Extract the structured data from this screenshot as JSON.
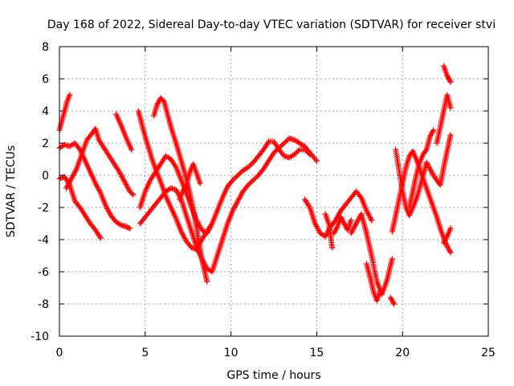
{
  "chart_data": {
    "type": "scatter",
    "title": "Day 168 of 2022, Sidereal Day-to-day VTEC variation (SDTVAR) for receiver stvi",
    "xlabel": "GPS time / hours",
    "ylabel": "SDTVAR / TECUs",
    "xlim": [
      0,
      25
    ],
    "ylim": [
      -10,
      8
    ],
    "xticks": [
      0,
      5,
      10,
      15,
      20,
      25
    ],
    "yticks": [
      -10,
      -8,
      -6,
      -4,
      -2,
      0,
      2,
      4,
      6,
      8
    ],
    "grid": true,
    "marker": "plus",
    "color": "#ff0000",
    "series": [
      {
        "name": "s1",
        "x": [
          0.0,
          0.15,
          0.3,
          0.45,
          0.6
        ],
        "y": [
          2.8,
          3.4,
          4.0,
          4.6,
          5.0
        ]
      },
      {
        "name": "s2",
        "x": [
          0.0,
          0.3,
          0.6,
          0.9,
          1.2,
          1.5,
          1.8,
          2.1,
          2.4
        ],
        "y": [
          -0.2,
          -0.1,
          -0.6,
          -1.6,
          -2.0,
          -2.5,
          -3.0,
          -3.4,
          -3.9
        ]
      },
      {
        "name": "s3",
        "x": [
          0.0,
          0.3,
          0.6,
          0.9,
          1.2,
          1.5,
          1.8,
          2.1,
          2.4,
          2.7,
          3.0,
          3.3,
          3.6,
          3.9,
          4.1
        ],
        "y": [
          1.7,
          1.9,
          1.8,
          2.0,
          1.6,
          0.9,
          0.2,
          -0.5,
          -1.1,
          -1.9,
          -2.5,
          -2.9,
          -3.1,
          -3.2,
          -3.3
        ]
      },
      {
        "name": "s4",
        "x": [
          0.4,
          0.7,
          1.0,
          1.3,
          1.6,
          1.9,
          2.1,
          2.3,
          2.6,
          2.9,
          3.2,
          3.5,
          3.8,
          4.1,
          4.3
        ],
        "y": [
          -0.8,
          -0.2,
          0.4,
          1.3,
          2.2,
          2.6,
          2.9,
          2.2,
          1.7,
          1.2,
          0.7,
          0.2,
          -0.4,
          -1.0,
          -1.2
        ]
      },
      {
        "name": "s5",
        "x": [
          3.3,
          3.6,
          3.9,
          4.2
        ],
        "y": [
          3.8,
          3.1,
          2.3,
          1.6
        ]
      },
      {
        "name": "s6",
        "x": [
          4.6,
          4.8,
          5.0,
          5.2,
          5.4,
          5.6,
          5.9,
          6.2,
          6.5,
          6.8,
          7.1,
          7.4,
          7.7,
          8.0,
          8.3,
          8.6,
          8.9,
          9.2,
          9.5,
          9.8,
          10.1,
          10.4,
          10.7,
          11.0,
          11.3,
          11.6,
          11.9,
          12.2,
          12.5,
          12.8,
          13.1,
          13.4,
          13.7,
          14.0,
          14.3,
          14.6
        ],
        "y": [
          4.0,
          3.2,
          2.4,
          1.7,
          1.0,
          0.4,
          -0.4,
          -1.3,
          -2.0,
          -2.7,
          -3.5,
          -4.1,
          -4.5,
          -4.6,
          -4.0,
          -3.5,
          -3.0,
          -2.2,
          -1.4,
          -0.7,
          -0.3,
          0.0,
          0.3,
          0.5,
          0.8,
          1.2,
          1.6,
          2.1,
          2.1,
          1.6,
          1.2,
          1.1,
          1.3,
          1.6,
          1.6,
          1.3
        ]
      },
      {
        "name": "s7",
        "x": [
          4.7,
          5.0,
          5.3,
          5.6,
          5.9,
          6.2,
          6.5,
          6.8,
          7.1,
          7.4,
          7.7,
          8.0,
          8.3,
          8.6,
          8.8
        ],
        "y": [
          -2.0,
          -1.0,
          -0.3,
          0.2,
          0.7,
          1.2,
          1.0,
          0.5,
          -0.3,
          -1.1,
          -2.0,
          -2.8,
          -3.4,
          -3.6,
          -3.2
        ]
      },
      {
        "name": "s8",
        "x": [
          4.7,
          5.0,
          5.3,
          5.6,
          5.9,
          6.2,
          6.5,
          6.8,
          7.1,
          7.4,
          7.7,
          8.0,
          8.3,
          8.6,
          8.9,
          9.2,
          9.5,
          9.8,
          10.1,
          10.4,
          10.7,
          11.0,
          11.3,
          11.6,
          11.9,
          12.2,
          12.5,
          12.8,
          13.1,
          13.4,
          13.7,
          14.0,
          14.3,
          14.6,
          15.0
        ],
        "y": [
          -3.0,
          -2.6,
          -2.2,
          -1.8,
          -1.4,
          -1.0,
          -0.8,
          -0.9,
          -1.5,
          -2.5,
          -3.5,
          -4.5,
          -5.2,
          -5.8,
          -6.0,
          -5.0,
          -4.0,
          -3.0,
          -2.2,
          -1.6,
          -1.0,
          -0.6,
          -0.3,
          0.0,
          0.4,
          0.9,
          1.4,
          1.7,
          2.0,
          2.3,
          2.2,
          2.0,
          1.8,
          1.4,
          0.9
        ]
      },
      {
        "name": "s9",
        "x": [
          5.5,
          5.7,
          5.9,
          6.1,
          6.3,
          6.5,
          6.8,
          7.1,
          7.4,
          7.7,
          8.0,
          8.3,
          8.6
        ],
        "y": [
          3.7,
          4.4,
          4.8,
          4.6,
          3.8,
          3.0,
          2.0,
          0.9,
          -0.2,
          -1.6,
          -3.3,
          -5.2,
          -6.6
        ]
      },
      {
        "name": "s10",
        "x": [
          7.0,
          7.2,
          7.4,
          7.6,
          7.8,
          8.0,
          8.2
        ],
        "y": [
          -1.5,
          -1.0,
          -0.6,
          0.2,
          0.7,
          0.1,
          -0.5
        ]
      },
      {
        "name": "s11",
        "x": [
          14.3,
          14.6,
          14.9,
          15.2,
          15.5,
          15.8,
          16.1,
          16.4,
          16.7,
          17.0,
          17.3,
          17.6,
          17.9,
          18.2
        ],
        "y": [
          -1.5,
          -2.0,
          -3.0,
          -3.6,
          -3.8,
          -3.2,
          -2.8,
          -2.2,
          -1.8,
          -1.4,
          -1.0,
          -1.4,
          -2.2,
          -2.8
        ]
      },
      {
        "name": "s12",
        "x": [
          15.5,
          15.7,
          15.9
        ],
        "y": [
          -2.4,
          -3.0,
          -4.5
        ]
      },
      {
        "name": "s13",
        "x": [
          16.0,
          16.2,
          16.4,
          16.6,
          16.8,
          17.0
        ],
        "y": [
          -3.6,
          -3.2,
          -2.6,
          -3.0,
          -3.4,
          -2.8
        ]
      },
      {
        "name": "s14",
        "x": [
          17.0,
          17.3,
          17.6,
          17.9,
          18.2,
          18.5,
          18.8,
          19.1,
          19.4
        ],
        "y": [
          -3.6,
          -3.0,
          -2.4,
          -3.6,
          -5.0,
          -6.6,
          -7.4,
          -6.5,
          -5.2
        ]
      },
      {
        "name": "s15",
        "x": [
          17.9,
          18.1,
          18.3,
          18.5,
          18.7
        ],
        "y": [
          -5.5,
          -6.3,
          -7.2,
          -7.8,
          -7.2
        ]
      },
      {
        "name": "s16",
        "x": [
          19.3,
          19.5
        ],
        "y": [
          -7.6,
          -8.0
        ]
      },
      {
        "name": "s17",
        "x": [
          19.4,
          19.6,
          19.8,
          20.0,
          20.2,
          20.4,
          20.6,
          20.8,
          21.0,
          21.2,
          21.4,
          21.6,
          21.8,
          22.0,
          22.2,
          22.4,
          22.6,
          22.8
        ],
        "y": [
          -3.5,
          -2.5,
          -1.5,
          -0.5,
          0.5,
          1.2,
          1.5,
          1.0,
          0.4,
          -0.2,
          -0.8,
          -1.4,
          -2.0,
          -2.6,
          -3.3,
          -3.9,
          -4.4,
          -4.8
        ]
      },
      {
        "name": "s18",
        "x": [
          19.6,
          19.8,
          20.0,
          20.2,
          20.4,
          20.6,
          20.8,
          21.0,
          21.2,
          21.4,
          21.6,
          21.8,
          22.0,
          22.2,
          22.4,
          22.6,
          22.8
        ],
        "y": [
          1.6,
          0.3,
          -1.0,
          -2.0,
          -2.5,
          -2.0,
          -1.5,
          -0.8,
          0.0,
          0.8,
          0.4,
          0.0,
          -0.3,
          -0.6,
          0.5,
          1.5,
          2.5
        ]
      },
      {
        "name": "s19",
        "x": [
          20.4,
          20.6,
          20.8,
          21.0,
          21.2,
          21.4,
          21.6,
          21.8
        ],
        "y": [
          -2.0,
          -1.0,
          0.0,
          0.8,
          1.3,
          1.6,
          2.4,
          2.8
        ]
      },
      {
        "name": "s20",
        "x": [
          22.0,
          22.2,
          22.4,
          22.6,
          22.8
        ],
        "y": [
          2.0,
          3.0,
          4.0,
          5.0,
          4.2
        ]
      },
      {
        "name": "s21",
        "x": [
          22.4,
          22.5,
          22.6,
          22.7,
          22.8
        ],
        "y": [
          6.8,
          6.5,
          6.2,
          6.0,
          5.8
        ]
      },
      {
        "name": "s22",
        "x": [
          22.4,
          22.6,
          22.8
        ],
        "y": [
          -4.2,
          -3.8,
          -3.3
        ]
      }
    ]
  }
}
